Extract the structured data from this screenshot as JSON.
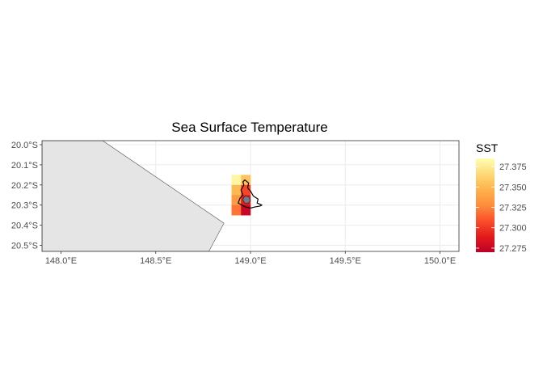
{
  "chart_data": {
    "type": "heatmap",
    "title": "Sea Surface Temperature",
    "xlabel": "",
    "ylabel": "",
    "xlim": [
      147.9,
      150.1
    ],
    "ylim": [
      -20.53,
      -19.98
    ],
    "x_ticks": [
      148.0,
      148.5,
      149.0,
      149.5,
      150.0
    ],
    "x_tick_labels": [
      "148.0°E",
      "148.5°E",
      "149.0°E",
      "149.5°E",
      "150.0°E"
    ],
    "y_ticks": [
      -20.0,
      -20.1,
      -20.2,
      -20.3,
      -20.4,
      -20.5
    ],
    "y_tick_labels": [
      "20.0°S",
      "20.1°S",
      "20.2°S",
      "20.3°S",
      "20.4°S",
      "20.5°S"
    ],
    "grid": true,
    "cell_size": 0.05,
    "cells": [
      {
        "lon": 148.925,
        "lat": -20.175,
        "value": 27.38
      },
      {
        "lon": 148.975,
        "lat": -20.175,
        "value": 27.355
      },
      {
        "lon": 148.925,
        "lat": -20.225,
        "value": 27.35
      },
      {
        "lon": 148.975,
        "lat": -20.225,
        "value": 27.305
      },
      {
        "lon": 148.925,
        "lat": -20.275,
        "value": 27.335
      },
      {
        "lon": 148.975,
        "lat": -20.275,
        "value": 27.29
      },
      {
        "lon": 148.925,
        "lat": -20.325,
        "value": 27.32
      },
      {
        "lon": 148.975,
        "lat": -20.325,
        "value": 27.275
      }
    ],
    "land_polygon": [
      [
        147.9,
        -19.98
      ],
      [
        148.22,
        -19.98
      ],
      [
        148.86,
        -20.39
      ],
      [
        148.78,
        -20.53
      ],
      [
        147.9,
        -20.53
      ]
    ],
    "island_outline": [
      [
        148.97,
        -20.175
      ],
      [
        148.99,
        -20.19
      ],
      [
        148.985,
        -20.215
      ],
      [
        149.0,
        -20.23
      ],
      [
        149.015,
        -20.255
      ],
      [
        149.04,
        -20.27
      ],
      [
        149.035,
        -20.29
      ],
      [
        149.06,
        -20.3
      ],
      [
        149.05,
        -20.305
      ],
      [
        149.02,
        -20.31
      ],
      [
        149.0,
        -20.315
      ],
      [
        148.975,
        -20.31
      ],
      [
        148.955,
        -20.3
      ],
      [
        148.935,
        -20.29
      ],
      [
        148.945,
        -20.265
      ],
      [
        148.96,
        -20.25
      ],
      [
        148.95,
        -20.225
      ],
      [
        148.965,
        -20.2
      ],
      [
        148.96,
        -20.185
      ]
    ],
    "island_core": [
      [
        148.975,
        -20.255
      ],
      [
        148.99,
        -20.26
      ],
      [
        149.0,
        -20.275
      ],
      [
        148.99,
        -20.29
      ],
      [
        148.97,
        -20.29
      ],
      [
        148.96,
        -20.275
      ],
      [
        148.965,
        -20.262
      ]
    ],
    "legend": {
      "title": "SST",
      "placement": "right",
      "min": 27.27,
      "max": 27.385,
      "tick_values": [
        27.375,
        27.35,
        27.325,
        27.3,
        27.275
      ],
      "tick_labels": [
        "27.375",
        "27.350",
        "27.325",
        "27.300",
        "27.275"
      ],
      "colors": [
        "#bd0026",
        "#e31a1c",
        "#fc4e2a",
        "#fd8d3c",
        "#feb24c",
        "#fed976",
        "#ffffb2"
      ]
    },
    "colors": {
      "land_fill": "#e5e5e5",
      "land_stroke": "#555555",
      "panel_border": "#333333",
      "grid": "#ebebeb",
      "island_core": "#6f7f8a"
    }
  }
}
